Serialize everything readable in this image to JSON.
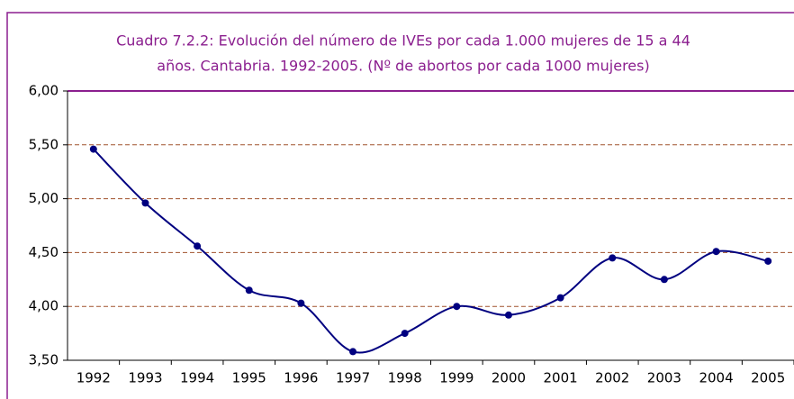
{
  "chart_data": {
    "type": "line",
    "title": [
      "Cuadro 7.2.2: Evolución del número de IVEs por cada 1.000 mujeres de 15 a 44",
      "años. Cantabria. 1992-2005. (Nº de abortos por cada 1000 mujeres)"
    ],
    "categories": [
      "1992",
      "1993",
      "1994",
      "1995",
      "1996",
      "1997",
      "1998",
      "1999",
      "2000",
      "2001",
      "2002",
      "2003",
      "2004",
      "2005"
    ],
    "values": [
      5.46,
      4.96,
      4.56,
      4.15,
      4.03,
      3.58,
      3.75,
      4.0,
      3.92,
      4.08,
      4.45,
      4.25,
      4.51,
      4.42
    ],
    "color": "#000080",
    "smooth": true,
    "ylim": [
      3.5,
      6.0
    ],
    "yticks": [
      {
        "value": 3.5,
        "label": "3,50"
      },
      {
        "value": 4.0,
        "label": "4,00"
      },
      {
        "value": 4.5,
        "label": "4,50"
      },
      {
        "value": 5.0,
        "label": "5,00"
      },
      {
        "value": 5.5,
        "label": "5,50"
      },
      {
        "value": 6.0,
        "label": "6,00"
      }
    ],
    "grid": true
  }
}
